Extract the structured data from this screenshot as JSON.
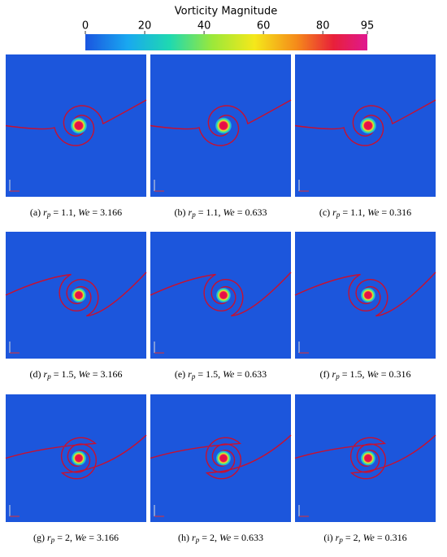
{
  "colorbar": {
    "title": "Vorticity Magnitude",
    "lim": [
      0,
      95
    ],
    "ticks": [
      0,
      20,
      40,
      60,
      80,
      95
    ]
  },
  "caption_format": {
    "r": "r",
    "sub": "p",
    "eq": "=",
    "sep": ",",
    "we": "We"
  },
  "panels": [
    {
      "label": "(a)",
      "r_p": "1.1",
      "We": "3.166"
    },
    {
      "label": "(b)",
      "r_p": "1.1",
      "We": "0.633"
    },
    {
      "label": "(c)",
      "r_p": "1.1",
      "We": "0.316"
    },
    {
      "label": "(d)",
      "r_p": "1.5",
      "We": "3.166"
    },
    {
      "label": "(e)",
      "r_p": "1.5",
      "We": "0.633"
    },
    {
      "label": "(f)",
      "r_p": "1.5",
      "We": "0.316"
    },
    {
      "label": "(g)",
      "r_p": "2",
      "We": "3.166"
    },
    {
      "label": "(h)",
      "r_p": "2",
      "We": "0.633"
    },
    {
      "label": "(i)",
      "r_p": "2",
      "We": "0.316"
    }
  ]
}
